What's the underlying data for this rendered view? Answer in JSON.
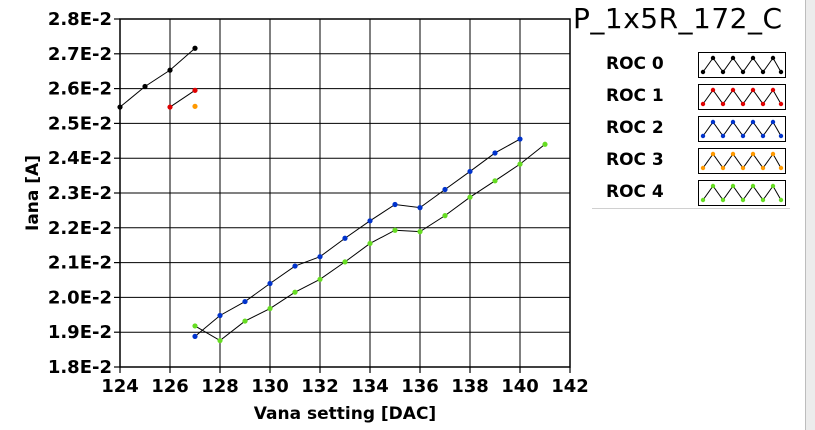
{
  "chart_data": {
    "type": "line",
    "title": "P_1x5R_172_C",
    "xlabel": "Vana setting [DAC]",
    "ylabel": "Iana [A]",
    "xlim": [
      124,
      142
    ],
    "ylim": [
      0.018,
      0.028
    ],
    "grid": true,
    "legend_position": "right",
    "x_ticks": [
      124,
      126,
      128,
      130,
      132,
      134,
      136,
      138,
      140,
      142
    ],
    "x_tick_labels": [
      "124",
      "126",
      "128",
      "130",
      "132",
      "134",
      "136",
      "138",
      "140",
      "142"
    ],
    "y_ticks": [
      0.018,
      0.019,
      0.02,
      0.021,
      0.022,
      0.023,
      0.024,
      0.025,
      0.026,
      0.027,
      0.028
    ],
    "y_tick_labels": [
      "1.8E-2",
      "1.9E-2",
      "2.0E-2",
      "2.1E-2",
      "2.2E-2",
      "2.3E-2",
      "2.4E-2",
      "2.5E-2",
      "2.6E-2",
      "2.7E-2",
      "2.8E-2"
    ],
    "series": [
      {
        "name": "ROC 0",
        "color": "#000000",
        "line": true,
        "x": [
          124,
          125,
          126,
          127
        ],
        "y": [
          0.02547,
          0.02606,
          0.02653,
          0.02716
        ]
      },
      {
        "name": "ROC 1",
        "color": "#e00000",
        "line": true,
        "x": [
          126,
          127
        ],
        "y": [
          0.02547,
          0.02595
        ]
      },
      {
        "name": "ROC 2",
        "color": "#0033cc",
        "line": true,
        "x": [
          127,
          128,
          129,
          130,
          131,
          132,
          133,
          134,
          135,
          136,
          137,
          138,
          139,
          140
        ],
        "y": [
          0.01888,
          0.01948,
          0.01988,
          0.0204,
          0.0209,
          0.02117,
          0.0217,
          0.0222,
          0.02267,
          0.02258,
          0.0231,
          0.02362,
          0.02415,
          0.02455
        ]
      },
      {
        "name": "ROC 3",
        "color": "#ff9900",
        "line": false,
        "x": [
          127
        ],
        "y": [
          0.02549
        ]
      },
      {
        "name": "ROC 4",
        "color": "#66dd22",
        "line": true,
        "x": [
          127,
          128,
          129,
          130,
          131,
          132,
          133,
          134,
          135,
          136,
          137,
          138,
          139,
          140,
          141
        ],
        "y": [
          0.01918,
          0.01876,
          0.01932,
          0.01968,
          0.02015,
          0.02052,
          0.02102,
          0.02155,
          0.02193,
          0.02189,
          0.02235,
          0.02288,
          0.02335,
          0.02383,
          0.0244
        ]
      }
    ]
  }
}
